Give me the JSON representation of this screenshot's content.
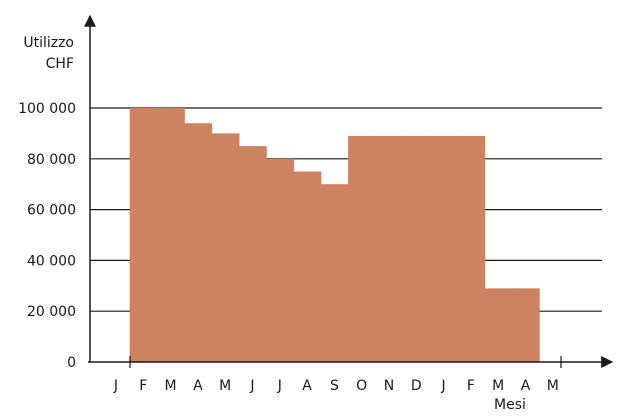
{
  "chart_data": {
    "type": "area",
    "ylabel_lines": [
      "Utilizzo",
      "CHF"
    ],
    "xlabel": "Mesi",
    "categories": [
      "J",
      "F",
      "M",
      "A",
      "M",
      "J",
      "J",
      "A",
      "S",
      "O",
      "N",
      "D",
      "J",
      "F",
      "M",
      "A",
      "M"
    ],
    "yticks": [
      0,
      20000,
      40000,
      60000,
      80000,
      100000
    ],
    "ytick_labels": [
      "0",
      "20 000",
      "40 000",
      "60 000",
      "80 000",
      "100 000"
    ],
    "ylim": [
      0,
      100000
    ],
    "grid": true,
    "fill_color": "#cd8261",
    "series": [
      {
        "values": [
          0,
          100000,
          100000,
          94000,
          90000,
          85000,
          80000,
          75000,
          70000,
          89000,
          89000,
          89000,
          89000,
          89000,
          29000,
          29000,
          0
        ]
      }
    ]
  }
}
